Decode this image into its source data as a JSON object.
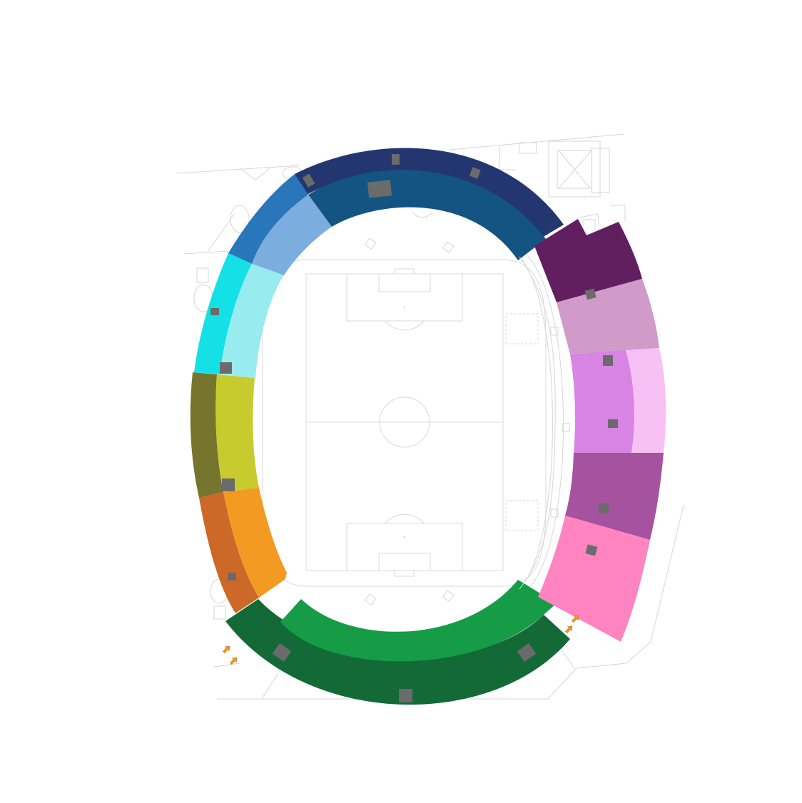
{
  "map": {
    "name": "stadium-seating-map",
    "sections": [
      {
        "id": "north-upper",
        "color": "#24366f"
      },
      {
        "id": "north-lower",
        "color": "#135482"
      },
      {
        "id": "northwest-upper",
        "color": "#2a76bb"
      },
      {
        "id": "northwest-lower",
        "color": "#7baede"
      },
      {
        "id": "west-upper-north",
        "color": "#14e1e6"
      },
      {
        "id": "west-lower-north",
        "color": "#98ebef"
      },
      {
        "id": "west-upper-center",
        "color": "#76752e"
      },
      {
        "id": "west-lower-center",
        "color": "#c8cb2e"
      },
      {
        "id": "southwest-upper",
        "color": "#cc6828"
      },
      {
        "id": "southwest-lower",
        "color": "#f39a22"
      },
      {
        "id": "south-upper",
        "color": "#136a36"
      },
      {
        "id": "south-lower",
        "color": "#169b47"
      },
      {
        "id": "east-northeast",
        "color": "#611f60"
      },
      {
        "id": "east-north",
        "color": "#d09bc9"
      },
      {
        "id": "east-center-inner",
        "color": "#d784e4"
      },
      {
        "id": "east-center-outer",
        "color": "#f8c1f5"
      },
      {
        "id": "east-south",
        "color": "#a5529f"
      },
      {
        "id": "east-southeast",
        "color": "#ff84bf"
      }
    ],
    "colors": {
      "entrance_marker": "#6b6b6b",
      "gate_arrow": "#ec9a2e",
      "pitch_lines": "#d9d9d9",
      "background": "#ffffff"
    },
    "icons": [
      "entrance-marker-icon",
      "gate-arrow-icon"
    ]
  }
}
